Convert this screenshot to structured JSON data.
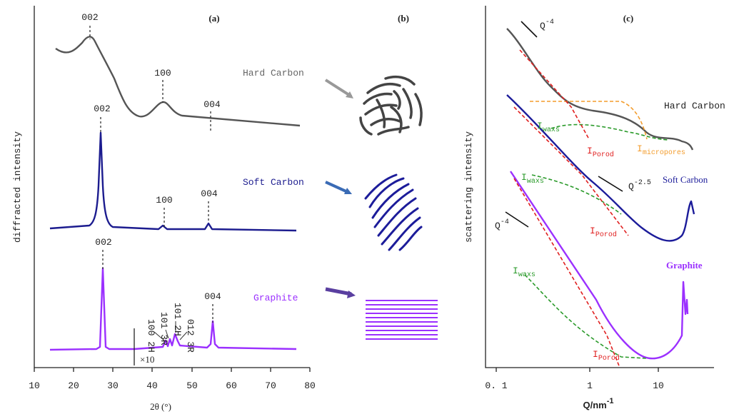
{
  "panel_a": {
    "label": "(a)",
    "y_label": "diffracted intensity",
    "x_label": "2θ (°)",
    "x_ticks": [
      "10",
      "20",
      "30",
      "40",
      "50",
      "60",
      "70",
      "80"
    ],
    "curves": [
      {
        "name": "Hard Carbon",
        "peaks": [
          "002",
          "100",
          "004"
        ]
      },
      {
        "name": "Soft Carbon",
        "peaks": [
          "002",
          "100",
          "004"
        ]
      },
      {
        "name": "Graphite",
        "peaks": [
          "002",
          "004"
        ],
        "minor_peaks": [
          "100 2H",
          "101 3R",
          "101 2H",
          "012 3R"
        ],
        "zoom": "×10"
      }
    ]
  },
  "panel_b": {
    "label": "(b)"
  },
  "panel_c": {
    "label": "(c)",
    "y_label": "scattering intensity",
    "x_label": {
      "base": "Q/nm",
      "sup": "-1"
    },
    "x_ticks": [
      "0. 1",
      "1",
      "10"
    ],
    "curves": [
      "Hard Carbon",
      "Soft Carbon",
      "Graphite"
    ],
    "annotations": {
      "q4_top": {
        "base": "Q",
        "sup": "-4"
      },
      "q25": {
        "base": "Q",
        "sup": "-2.5"
      },
      "q4_bottom": {
        "base": "Q",
        "sup": "-4"
      },
      "waxs_hard": {
        "base": "I",
        "sub": "waxs"
      },
      "porod_hard": {
        "base": "I",
        "sub": "Porod"
      },
      "micropores": {
        "base": "I",
        "sub": "micropores"
      },
      "waxs_soft": {
        "base": "I",
        "sub": "waxs"
      },
      "porod_soft": {
        "base": "I",
        "sub": "Porod"
      },
      "waxs_graphite": {
        "base": "I",
        "sub": "waxs"
      },
      "porod_graphite": {
        "base": "I",
        "sub": "Porod"
      }
    }
  }
}
